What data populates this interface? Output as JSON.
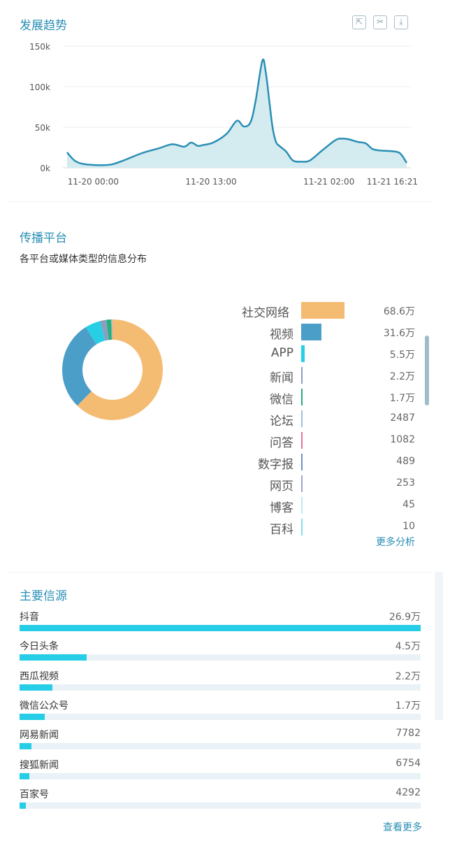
{
  "trend": {
    "title": "发展趋势",
    "tools": [
      {
        "icon": "share-icon",
        "glyph": "⇱"
      },
      {
        "icon": "scissors-icon",
        "glyph": "✂"
      },
      {
        "icon": "download-icon",
        "glyph": "⤓"
      }
    ]
  },
  "platform": {
    "title": "传播平台",
    "subtitle": "各平台或媒体类型的信息分布",
    "more": "更多分析",
    "expand_icon": "chevron-down-icon"
  },
  "sources": {
    "title": "主要信源",
    "more": "查看更多"
  },
  "chart_data": [
    {
      "type": "area",
      "title": "发展趋势",
      "color": "#2a8fb5",
      "fill": "#d4ebf0",
      "grid": true,
      "ylim": [
        0,
        150000
      ],
      "yticks": [
        0,
        50000,
        100000,
        150000
      ],
      "ytick_labels": [
        "0k",
        "50k",
        "100k",
        "150k"
      ],
      "xtick_labels": [
        "11-20 00:00",
        "11-20 13:00",
        "11-21 02:00",
        "11-21 16:21"
      ],
      "xtick_positions": [
        0.077,
        0.424,
        0.771,
        1.0
      ],
      "series": [
        {
          "x": [
            0,
            0.025,
            0.06,
            0.12,
            0.16,
            0.22,
            0.27,
            0.31,
            0.345,
            0.365,
            0.385,
            0.4,
            0.43,
            0.47,
            0.5,
            0.52,
            0.54,
            0.555,
            0.575,
            0.585,
            0.595,
            0.605,
            0.615,
            0.625,
            0.645,
            0.665,
            0.69,
            0.715,
            0.75,
            0.79,
            0.81,
            0.83,
            0.855,
            0.88,
            0.9,
            0.93,
            0.955,
            0.98,
            1.0
          ],
          "values": [
            19000,
            8000,
            4000,
            3500,
            8000,
            18000,
            24000,
            29000,
            26000,
            31000,
            27000,
            28000,
            31000,
            42000,
            58000,
            51000,
            56000,
            82000,
            132000,
            118000,
            84000,
            50000,
            32000,
            27000,
            20000,
            9000,
            7500,
            9000,
            21000,
            34000,
            36000,
            35000,
            32000,
            30000,
            23000,
            21000,
            20500,
            18000,
            6000
          ]
        }
      ]
    },
    {
      "type": "pie",
      "title": "传播平台",
      "categories": [
        "社交网络",
        "视频",
        "APP",
        "新闻",
        "微信",
        "论坛",
        "问答",
        "数字报",
        "网页",
        "博客",
        "百科"
      ],
      "labels": [
        "68.6万",
        "31.6万",
        "5.5万",
        "2.2万",
        "1.7万",
        "2487",
        "1082",
        "489",
        "253",
        "45",
        "10"
      ],
      "values": [
        686000,
        316000,
        55000,
        22000,
        17000,
        2487,
        1082,
        489,
        253,
        45,
        10
      ],
      "colors": [
        "#f4bc73",
        "#4a9ec8",
        "#27cfe5",
        "#8a9fbf",
        "#23b07a",
        "#9fc0d8",
        "#e87290",
        "#6f90c7",
        "#9ba8c8",
        "#b8ecf2",
        "#7fe0ef"
      ]
    },
    {
      "type": "bar",
      "title": "主要信源",
      "categories": [
        "抖音",
        "今日头条",
        "西瓜视频",
        "微信公众号",
        "网易新闻",
        "搜狐新闻",
        "百家号"
      ],
      "labels": [
        "26.9万",
        "4.5万",
        "2.2万",
        "1.7万",
        "7782",
        "6754",
        "4292"
      ],
      "values": [
        269000,
        45000,
        22000,
        17000,
        7782,
        6754,
        4292
      ]
    }
  ]
}
